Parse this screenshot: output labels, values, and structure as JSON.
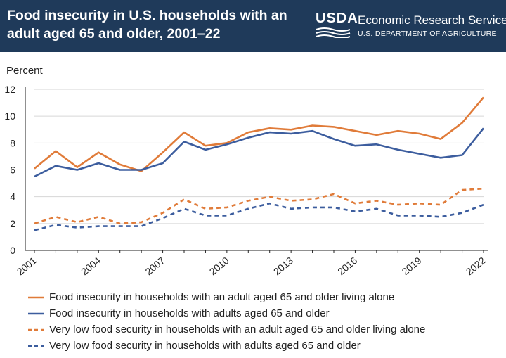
{
  "header": {
    "title": "Food insecurity in U.S. households with an adult aged 65 and older, 2001–22",
    "logo_text": "USDA",
    "agency_name": "Economic Research Service",
    "department": "U.S. DEPARTMENT OF AGRICULTURE"
  },
  "colors": {
    "header_bg": "#1f3a5a",
    "orange": "#e07b39",
    "blue": "#3c5d9e",
    "grid": "#d6d6d6",
    "axis": "#222222"
  },
  "chart_data": {
    "type": "line",
    "ylabel": "Percent",
    "xlabel": "",
    "title": "Food insecurity in U.S. households with an adult aged 65 and older, 2001–22",
    "ylim": [
      0,
      12
    ],
    "yticks": [
      0,
      2,
      4,
      6,
      8,
      10,
      12
    ],
    "grid": true,
    "legend_position": "bottom",
    "x": [
      2001,
      2002,
      2003,
      2004,
      2005,
      2006,
      2007,
      2008,
      2009,
      2010,
      2011,
      2012,
      2013,
      2014,
      2015,
      2016,
      2017,
      2018,
      2019,
      2020,
      2021,
      2022
    ],
    "xtick_labels": [
      "2001",
      "2004",
      "2007",
      "2010",
      "2013",
      "2016",
      "2019",
      "2022"
    ],
    "series": [
      {
        "name": "Food insecurity in households with an adult aged 65 and older living alone",
        "color": "#e07b39",
        "style": "solid",
        "values": [
          6.1,
          7.4,
          6.2,
          7.3,
          6.4,
          5.9,
          7.3,
          8.8,
          7.8,
          8.0,
          8.8,
          9.1,
          9.0,
          9.3,
          9.2,
          8.9,
          8.6,
          8.9,
          8.7,
          8.3,
          9.5,
          11.4
        ]
      },
      {
        "name": "Food insecurity in households with adults aged 65 and older",
        "color": "#3c5d9e",
        "style": "solid",
        "values": [
          5.5,
          6.3,
          6.0,
          6.5,
          6.0,
          6.0,
          6.5,
          8.1,
          7.5,
          7.9,
          8.4,
          8.8,
          8.7,
          8.9,
          8.3,
          7.8,
          7.9,
          7.5,
          7.2,
          6.9,
          7.1,
          9.1
        ]
      },
      {
        "name": "Very low food security in households with an adult aged 65 and older living alone",
        "color": "#e07b39",
        "style": "dashed",
        "values": [
          2.0,
          2.5,
          2.1,
          2.5,
          2.0,
          2.1,
          2.8,
          3.8,
          3.1,
          3.2,
          3.7,
          4.0,
          3.7,
          3.8,
          4.2,
          3.5,
          3.7,
          3.4,
          3.5,
          3.4,
          4.5,
          4.6
        ]
      },
      {
        "name": "Very low food security in households with adults aged 65 and older",
        "color": "#3c5d9e",
        "style": "dashed",
        "values": [
          1.5,
          1.9,
          1.7,
          1.8,
          1.8,
          1.8,
          2.4,
          3.1,
          2.6,
          2.6,
          3.1,
          3.5,
          3.1,
          3.2,
          3.2,
          2.9,
          3.1,
          2.6,
          2.6,
          2.5,
          2.8,
          3.4
        ]
      }
    ]
  }
}
